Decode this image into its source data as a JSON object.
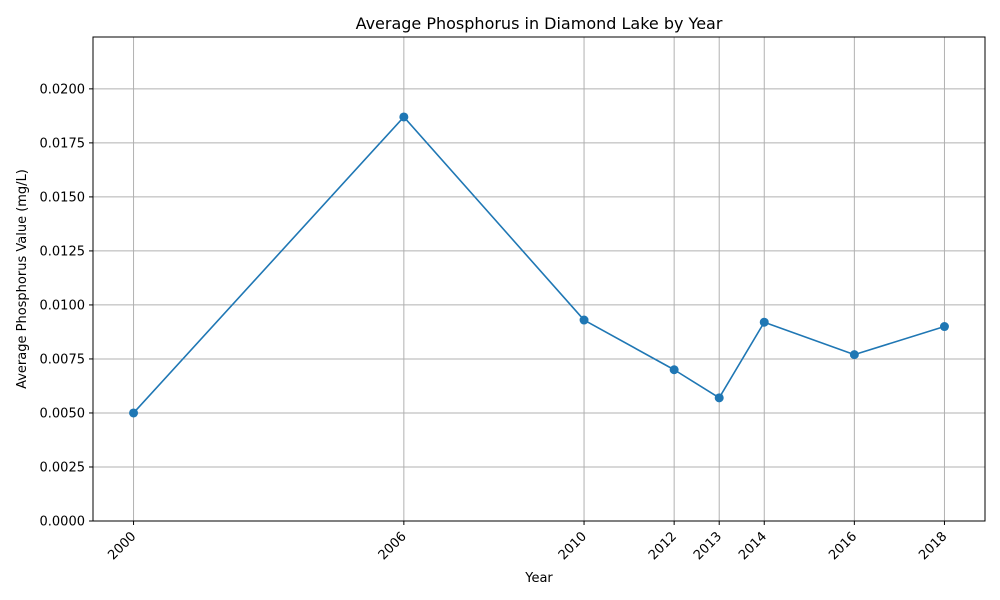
{
  "chart_data": {
    "type": "line",
    "title": "Average Phosphorus in Diamond Lake by Year",
    "xlabel": "Year",
    "ylabel": "Average Phosphorus Value (mg/L)",
    "x": [
      2000,
      2006,
      2010,
      2012,
      2013,
      2014,
      2016,
      2018
    ],
    "x_tick_labels": [
      "2000",
      "2006",
      "2010",
      "2012",
      "2013",
      "2014",
      "2016",
      "2018"
    ],
    "series": [
      {
        "values": [
          0.005,
          0.0187,
          0.0093,
          0.007,
          0.0057,
          0.0092,
          0.0077,
          0.009
        ],
        "color": "#1f77b4",
        "marker": "circle"
      }
    ],
    "xlim": [
      1999.1,
      2018.9
    ],
    "ylim": [
      0,
      0.0224
    ],
    "y_ticks": [
      0.0,
      0.0025,
      0.005,
      0.0075,
      0.01,
      0.0125,
      0.015,
      0.0175,
      0.02
    ],
    "y_tick_labels": [
      "0.0000",
      "0.0025",
      "0.0050",
      "0.0075",
      "0.0100",
      "0.0125",
      "0.0150",
      "0.0175",
      "0.0200"
    ],
    "grid": true,
    "colors": {
      "grid": "#b0b0b0",
      "axes": "#000000"
    }
  }
}
